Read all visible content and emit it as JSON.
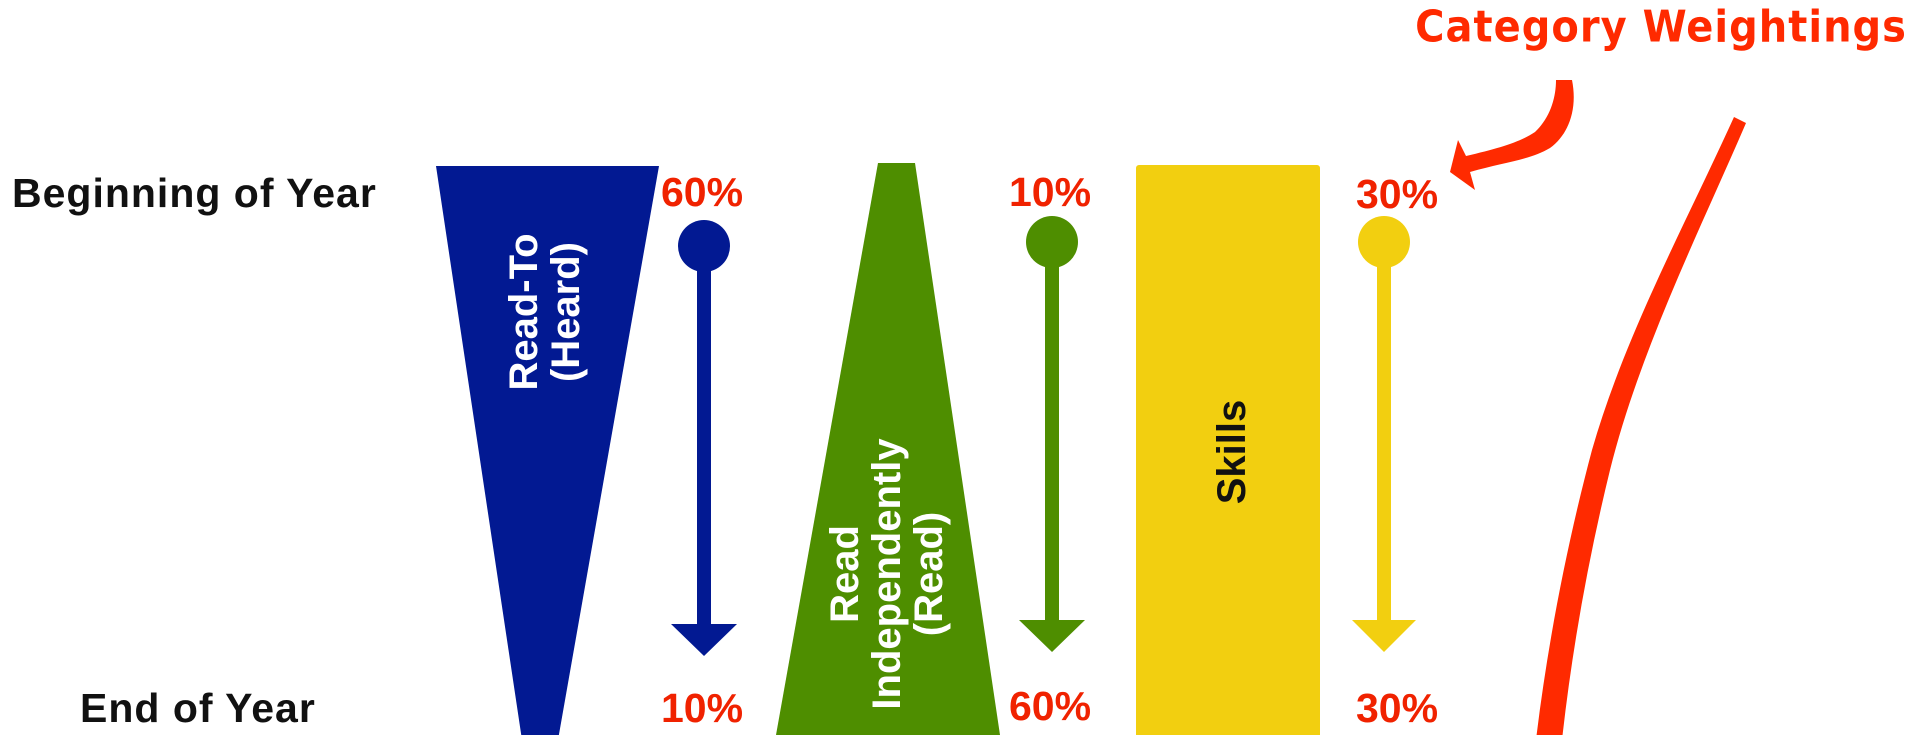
{
  "rows": {
    "beginning": "Beginning of Year",
    "end": "End of Year"
  },
  "callout": {
    "label": "Category Weightings",
    "color": "#ff2a00"
  },
  "categories": [
    {
      "id": "read-to",
      "lines": [
        "Read-To",
        "(Heard)"
      ],
      "color": "#021992",
      "text_color": "#ffffff",
      "shape": "funnel-narrowing",
      "begin_pct": "60%",
      "end_pct": "10%"
    },
    {
      "id": "read-independently",
      "lines": [
        "Read",
        "Independently",
        "(Read)"
      ],
      "color": "#4e8e00",
      "text_color": "#ffffff",
      "shape": "funnel-widening",
      "begin_pct": "10%",
      "end_pct": "60%"
    },
    {
      "id": "skills",
      "lines": [
        "Skills"
      ],
      "color": "#f2cf10",
      "text_color": "#111111",
      "shape": "rectangle",
      "begin_pct": "30%",
      "end_pct": "30%"
    }
  ],
  "percent_color": "#f02200"
}
